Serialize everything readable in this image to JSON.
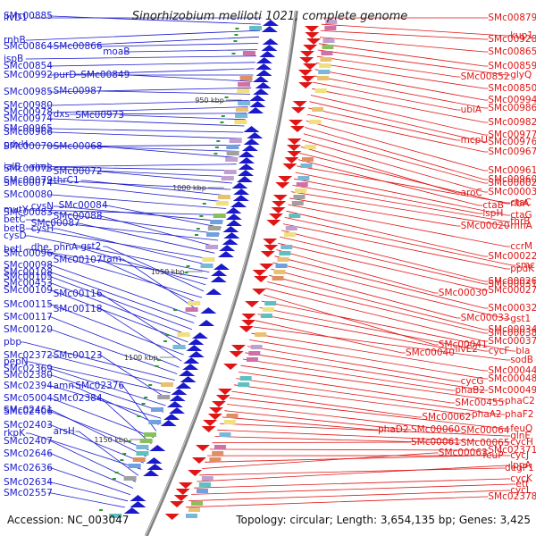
{
  "title": "Sinorhizobium meliloti 1021, complete genome",
  "footer": {
    "accession": "Accession: NC_003047",
    "summary": "Topology: circular; Length: 3,654,135 bp; Genes: 3,425"
  },
  "ticks": [
    {
      "label": "950 kbp",
      "kbp": 950
    },
    {
      "label": "1000 kbp",
      "kbp": 1000
    },
    {
      "label": "1050 kbp",
      "kbp": 1050
    },
    {
      "label": "1100 kbp",
      "kbp": 1100
    },
    {
      "label": "1150 kbp",
      "kbp": 1150
    }
  ],
  "colors": {
    "forward": "#1a1acc",
    "reverse": "#e01515",
    "backbone": "#808080"
  },
  "left_labels": [
    [
      "ilvD1",
      20
    ],
    [
      "SMc00885",
      18
    ],
    [
      "rnhB",
      45
    ],
    [
      "SMc00864",
      52
    ],
    [
      "SMc00866",
      52
    ],
    [
      "moaB",
      58
    ],
    [
      "ispB",
      66
    ],
    [
      "SMc00854",
      74
    ],
    [
      "SMc00992",
      84
    ],
    [
      "purD",
      84
    ],
    [
      "SMc00849",
      84
    ],
    [
      "SMc00985",
      103
    ],
    [
      "SMc00987",
      102
    ],
    [
      "SMc00980",
      118
    ],
    [
      "SMc00978",
      126
    ],
    [
      "dxs",
      128
    ],
    [
      "SMc00973",
      129
    ],
    [
      "SMc00974",
      133
    ],
    [
      "SMc00965",
      144
    ],
    [
      "SMc00966",
      148
    ],
    [
      "SMc00070",
      164
    ],
    [
      "pdxH",
      162
    ],
    [
      "SMc00068",
      164
    ],
    [
      "ialB",
      187
    ],
    [
      "rimJ",
      187
    ],
    [
      "SMc00073",
      189
    ],
    [
      "SMc00072",
      192
    ],
    [
      "SMc00079",
      202
    ],
    [
      "thrC1",
      202
    ],
    [
      "SMc00074",
      205
    ],
    [
      "SMc00080",
      218
    ],
    [
      "mutY",
      235
    ],
    [
      "cysN",
      231
    ],
    [
      "SMc00084",
      230
    ],
    [
      "SMc00083",
      238
    ],
    [
      "betC",
      246
    ],
    [
      "SMc00088",
      242
    ],
    [
      "SMc00087",
      250
    ],
    [
      "betB",
      256
    ],
    [
      "cysH",
      256
    ],
    [
      "cysD",
      264
    ],
    [
      "betI",
      279
    ],
    [
      "dhe_phnA",
      277
    ],
    [
      "gst2",
      276
    ],
    [
      "SMc00096",
      284
    ],
    [
      "SMc00107",
      291
    ],
    [
      "tam",
      290
    ],
    [
      "SMc00098",
      297
    ],
    [
      "SMc00108",
      305
    ],
    [
      "SMc00105",
      310
    ],
    [
      "SMc00453",
      317
    ],
    [
      "SMc00109",
      325
    ],
    [
      "SMc00116",
      329
    ],
    [
      "SMc00115",
      341
    ],
    [
      "SMc00118",
      346
    ],
    [
      "SMc00117",
      355
    ],
    [
      "SMc00120",
      369
    ],
    [
      "pbp",
      383
    ],
    [
      "SMc02372",
      398
    ],
    [
      "pepN",
      405
    ],
    [
      "SMc00123",
      398
    ],
    [
      "SMc02369",
      413
    ],
    [
      "SMc02380",
      420
    ],
    [
      "SMc02394",
      432
    ],
    [
      "amn",
      432
    ],
    [
      "SMc02376",
      432
    ],
    [
      "SMc05004",
      446
    ],
    [
      "SMc02384",
      446
    ],
    [
      "SMc02406",
      461
    ],
    [
      "SMc02461",
      459
    ],
    [
      "SMc02403",
      476
    ],
    [
      "rkpK",
      485
    ],
    [
      "arsH",
      483
    ],
    [
      "SMc02407",
      494
    ],
    [
      "SMc02646",
      508
    ],
    [
      "SMc02636",
      524
    ],
    [
      "SMc02634",
      540
    ],
    [
      "SMc02557",
      552
    ]
  ],
  "right_labels": [
    [
      "SMc00879",
      20
    ],
    [
      "kup1",
      40
    ],
    [
      "SMc00928",
      44
    ],
    [
      "SMc00865",
      58
    ],
    [
      "SMc00859",
      74
    ],
    [
      "glyQ",
      84
    ],
    [
      "SMc00852",
      86
    ],
    [
      "SMc00850",
      99
    ],
    [
      "SMc00994",
      112
    ],
    [
      "SMc00986",
      121
    ],
    [
      "ubiA",
      123
    ],
    [
      "SMc00982",
      137
    ],
    [
      "SMc00977",
      151
    ],
    [
      "SMc00976",
      159
    ],
    [
      "mcpU",
      157
    ],
    [
      "SMc00967",
      170
    ],
    [
      "SMc00961",
      191
    ],
    [
      "SMc00960",
      201
    ],
    [
      "SMc00002",
      205
    ],
    [
      "SMc00003",
      215
    ],
    [
      "aroC",
      216
    ],
    [
      "ribA",
      228
    ],
    [
      "ctaB",
      230
    ],
    [
      "ctaC",
      227
    ],
    [
      "ctaG",
      241
    ],
    [
      "ispH",
      239
    ],
    [
      "thrB",
      248
    ],
    [
      "rnhA",
      253
    ],
    [
      "SMc00020",
      253
    ],
    [
      "ccrM",
      276
    ],
    [
      "SMc00022",
      287
    ],
    [
      "smc",
      297
    ],
    [
      "ppdK",
      301
    ],
    [
      "SMc00026",
      315
    ],
    [
      "SMc00031",
      318
    ],
    [
      "SMc00027",
      325
    ],
    [
      "SMc00030",
      328
    ],
    [
      "SMc00032",
      345
    ],
    [
      "gst1",
      357
    ],
    [
      "SMc00033",
      356
    ],
    [
      "SMc00034",
      369
    ],
    [
      "SMc00038",
      373
    ],
    [
      "SMc00037",
      382
    ],
    [
      "SMc00041",
      386
    ],
    [
      "bla",
      393
    ],
    [
      "cycF",
      393
    ],
    [
      "ilvE2",
      391
    ],
    [
      "SMc00040",
      395
    ],
    [
      "sodB",
      403
    ],
    [
      "SMc00044",
      415
    ],
    [
      "SMc00048",
      424
    ],
    [
      "cycG",
      427
    ],
    [
      "SMc00049",
      437
    ],
    [
      "phaB2",
      437
    ],
    [
      "phaC2",
      449
    ],
    [
      "SMc00455",
      451
    ],
    [
      "phaF2",
      464
    ],
    [
      "phaA2",
      464
    ],
    [
      "SMc00062",
      467
    ],
    [
      "feuQ",
      480
    ],
    [
      "SMc00064",
      482
    ],
    [
      "SMc00060",
      481
    ],
    [
      "phaD2",
      481
    ],
    [
      "glnE",
      488
    ],
    [
      "cycH",
      495
    ],
    [
      "SMc00065",
      496
    ],
    [
      "SMc00061",
      495
    ],
    [
      "SMc02371",
      504
    ],
    [
      "cycJ",
      510
    ],
    [
      "feuP",
      510
    ],
    [
      "SMc00063",
      507
    ],
    [
      "degP1",
      524
    ],
    [
      "lppA",
      521
    ],
    [
      "cycK",
      536
    ],
    [
      "etf",
      542
    ],
    [
      "cycL",
      549
    ],
    [
      "SMc02378",
      556
    ]
  ]
}
